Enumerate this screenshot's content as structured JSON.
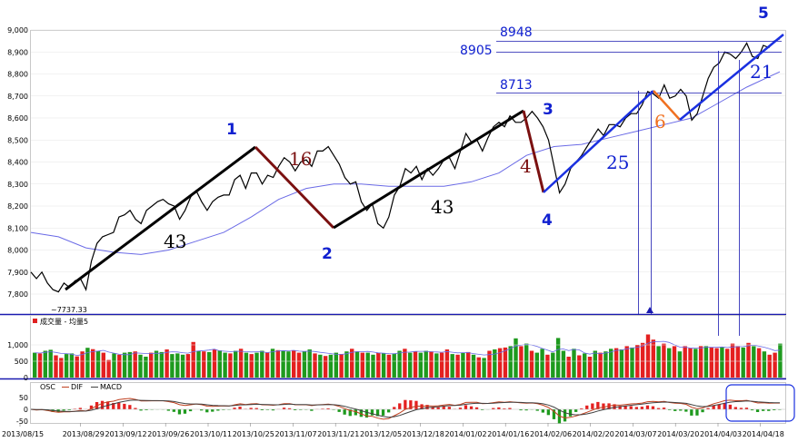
{
  "chart_data": {
    "type": "line",
    "main_panel": {
      "y_ticks": [
        "9,000",
        "8,900",
        "8,800",
        "8,700",
        "8,600",
        "8,500",
        "8,400",
        "8,300",
        "8,200",
        "8,100",
        "8,000",
        "7,900",
        "7,800"
      ],
      "ylim": [
        7737,
        9000
      ],
      "min_label": "7737.33",
      "price": [
        [
          0,
          7900
        ],
        [
          2,
          7870
        ],
        [
          4,
          7900
        ],
        [
          6,
          7850
        ],
        [
          8,
          7820
        ],
        [
          10,
          7810
        ],
        [
          12,
          7850
        ],
        [
          14,
          7830
        ],
        [
          16,
          7860
        ],
        [
          18,
          7870
        ],
        [
          20,
          7820
        ],
        [
          22,
          7950
        ],
        [
          24,
          8030
        ],
        [
          26,
          8060
        ],
        [
          28,
          8070
        ],
        [
          30,
          8080
        ],
        [
          32,
          8150
        ],
        [
          34,
          8160
        ],
        [
          36,
          8180
        ],
        [
          38,
          8140
        ],
        [
          40,
          8120
        ],
        [
          42,
          8180
        ],
        [
          44,
          8200
        ],
        [
          46,
          8220
        ],
        [
          48,
          8230
        ],
        [
          50,
          8210
        ],
        [
          52,
          8200
        ],
        [
          54,
          8140
        ],
        [
          56,
          8180
        ],
        [
          58,
          8240
        ],
        [
          60,
          8270
        ],
        [
          62,
          8220
        ],
        [
          64,
          8180
        ],
        [
          66,
          8220
        ],
        [
          68,
          8240
        ],
        [
          70,
          8250
        ],
        [
          72,
          8250
        ],
        [
          74,
          8320
        ],
        [
          76,
          8340
        ],
        [
          78,
          8280
        ],
        [
          80,
          8350
        ],
        [
          82,
          8350
        ],
        [
          84,
          8300
        ],
        [
          86,
          8340
        ],
        [
          88,
          8330
        ],
        [
          90,
          8380
        ],
        [
          92,
          8420
        ],
        [
          94,
          8400
        ],
        [
          96,
          8360
        ],
        [
          98,
          8400
        ],
        [
          100,
          8410
        ],
        [
          102,
          8380
        ],
        [
          104,
          8450
        ],
        [
          106,
          8450
        ],
        [
          108,
          8470
        ],
        [
          110,
          8430
        ],
        [
          112,
          8390
        ],
        [
          114,
          8330
        ],
        [
          116,
          8300
        ],
        [
          118,
          8310
        ],
        [
          120,
          8220
        ],
        [
          122,
          8180
        ],
        [
          124,
          8210
        ],
        [
          126,
          8120
        ],
        [
          128,
          8100
        ],
        [
          130,
          8150
        ],
        [
          132,
          8250
        ],
        [
          134,
          8290
        ],
        [
          136,
          8370
        ],
        [
          138,
          8350
        ],
        [
          140,
          8380
        ],
        [
          142,
          8320
        ],
        [
          144,
          8370
        ],
        [
          146,
          8340
        ],
        [
          148,
          8370
        ],
        [
          150,
          8410
        ],
        [
          152,
          8420
        ],
        [
          154,
          8370
        ],
        [
          156,
          8450
        ],
        [
          158,
          8530
        ],
        [
          160,
          8490
        ],
        [
          162,
          8500
        ],
        [
          164,
          8450
        ],
        [
          166,
          8510
        ],
        [
          168,
          8560
        ],
        [
          170,
          8580
        ],
        [
          172,
          8560
        ],
        [
          174,
          8610
        ],
        [
          176,
          8580
        ],
        [
          178,
          8580
        ],
        [
          180,
          8600
        ],
        [
          182,
          8630
        ],
        [
          184,
          8600
        ],
        [
          186,
          8560
        ],
        [
          188,
          8500
        ],
        [
          190,
          8380
        ],
        [
          192,
          8260
        ],
        [
          194,
          8300
        ],
        [
          196,
          8370
        ],
        [
          198,
          8400
        ],
        [
          200,
          8430
        ],
        [
          202,
          8470
        ],
        [
          204,
          8510
        ],
        [
          206,
          8550
        ],
        [
          208,
          8520
        ],
        [
          210,
          8570
        ],
        [
          212,
          8570
        ],
        [
          214,
          8560
        ],
        [
          216,
          8600
        ],
        [
          218,
          8620
        ],
        [
          220,
          8620
        ],
        [
          222,
          8660
        ],
        [
          224,
          8720
        ],
        [
          226,
          8710
        ],
        [
          228,
          8690
        ],
        [
          230,
          8750
        ],
        [
          232,
          8690
        ],
        [
          234,
          8700
        ],
        [
          236,
          8730
        ],
        [
          238,
          8700
        ],
        [
          240,
          8590
        ],
        [
          242,
          8620
        ],
        [
          244,
          8700
        ],
        [
          246,
          8780
        ],
        [
          248,
          8830
        ],
        [
          250,
          8850
        ],
        [
          252,
          8900
        ],
        [
          254,
          8890
        ],
        [
          256,
          8870
        ],
        [
          258,
          8900
        ],
        [
          260,
          8940
        ],
        [
          262,
          8880
        ],
        [
          264,
          8870
        ],
        [
          266,
          8930
        ],
        [
          268,
          8920
        ],
        [
          270,
          8950
        ],
        [
          272,
          8960
        ]
      ],
      "ma": [
        [
          0,
          8080
        ],
        [
          10,
          8060
        ],
        [
          20,
          8010
        ],
        [
          30,
          7990
        ],
        [
          40,
          7980
        ],
        [
          50,
          8000
        ],
        [
          60,
          8040
        ],
        [
          70,
          8080
        ],
        [
          80,
          8150
        ],
        [
          90,
          8230
        ],
        [
          100,
          8280
        ],
        [
          110,
          8300
        ],
        [
          120,
          8300
        ],
        [
          130,
          8290
        ],
        [
          140,
          8290
        ],
        [
          150,
          8290
        ],
        [
          160,
          8310
        ],
        [
          170,
          8350
        ],
        [
          180,
          8430
        ],
        [
          190,
          8470
        ],
        [
          200,
          8480
        ],
        [
          210,
          8510
        ],
        [
          220,
          8540
        ],
        [
          230,
          8570
        ],
        [
          240,
          8600
        ],
        [
          250,
          8670
        ],
        [
          260,
          8740
        ],
        [
          272,
          8810
        ]
      ],
      "levels": [
        {
          "label": "8948",
          "value": 8948
        },
        {
          "label": "8905",
          "value": 8905
        },
        {
          "label": "8713",
          "value": 8713
        }
      ],
      "wave_labels": [
        "1",
        "2",
        "3",
        "4",
        "5"
      ],
      "count_labels": [
        "43",
        "16",
        "43",
        "4",
        "25",
        "6",
        "21"
      ]
    },
    "volume_panel": {
      "legend": "成交量 - 均量5",
      "y_ticks": [
        "1,000",
        "500",
        "0"
      ],
      "ylim": [
        0,
        1500
      ],
      "values": [
        [
          760,
          "g"
        ],
        [
          740,
          "r"
        ],
        [
          820,
          "g"
        ],
        [
          850,
          "g"
        ],
        [
          680,
          "r"
        ],
        [
          600,
          "r"
        ],
        [
          720,
          "g"
        ],
        [
          740,
          "g"
        ],
        [
          650,
          "r"
        ],
        [
          800,
          "r"
        ],
        [
          910,
          "g"
        ],
        [
          870,
          "r"
        ],
        [
          820,
          "g"
        ],
        [
          760,
          "r"
        ],
        [
          540,
          "r"
        ],
        [
          740,
          "g"
        ],
        [
          700,
          "r"
        ],
        [
          760,
          "g"
        ],
        [
          780,
          "g"
        ],
        [
          800,
          "r"
        ],
        [
          700,
          "g"
        ],
        [
          640,
          "g"
        ],
        [
          760,
          "r"
        ],
        [
          820,
          "g"
        ],
        [
          780,
          "g"
        ],
        [
          860,
          "r"
        ],
        [
          720,
          "g"
        ],
        [
          740,
          "g"
        ],
        [
          700,
          "g"
        ],
        [
          720,
          "r"
        ],
        [
          1090,
          "r"
        ],
        [
          820,
          "g"
        ],
        [
          800,
          "r"
        ],
        [
          780,
          "g"
        ],
        [
          860,
          "r"
        ],
        [
          830,
          "g"
        ],
        [
          760,
          "g"
        ],
        [
          740,
          "r"
        ],
        [
          820,
          "g"
        ],
        [
          880,
          "r"
        ],
        [
          760,
          "g"
        ],
        [
          720,
          "r"
        ],
        [
          760,
          "g"
        ],
        [
          820,
          "g"
        ],
        [
          760,
          "r"
        ],
        [
          880,
          "g"
        ],
        [
          840,
          "r"
        ],
        [
          820,
          "g"
        ],
        [
          800,
          "g"
        ],
        [
          820,
          "r"
        ],
        [
          760,
          "r"
        ],
        [
          800,
          "g"
        ],
        [
          860,
          "g"
        ],
        [
          740,
          "r"
        ],
        [
          700,
          "g"
        ],
        [
          660,
          "r"
        ],
        [
          700,
          "g"
        ],
        [
          760,
          "g"
        ],
        [
          720,
          "r"
        ],
        [
          800,
          "g"
        ],
        [
          880,
          "r"
        ],
        [
          800,
          "g"
        ],
        [
          760,
          "r"
        ],
        [
          760,
          "g"
        ],
        [
          700,
          "g"
        ],
        [
          760,
          "r"
        ],
        [
          740,
          "g"
        ],
        [
          700,
          "r"
        ],
        [
          740,
          "g"
        ],
        [
          820,
          "g"
        ],
        [
          880,
          "r"
        ],
        [
          760,
          "g"
        ],
        [
          800,
          "r"
        ],
        [
          760,
          "g"
        ],
        [
          820,
          "g"
        ],
        [
          800,
          "r"
        ],
        [
          740,
          "g"
        ],
        [
          760,
          "r"
        ],
        [
          860,
          "r"
        ],
        [
          720,
          "g"
        ],
        [
          700,
          "r"
        ],
        [
          760,
          "g"
        ],
        [
          780,
          "r"
        ],
        [
          700,
          "g"
        ],
        [
          620,
          "r"
        ],
        [
          600,
          "g"
        ],
        [
          820,
          "r"
        ],
        [
          860,
          "g"
        ],
        [
          900,
          "r"
        ],
        [
          920,
          "r"
        ],
        [
          960,
          "g"
        ],
        [
          1200,
          "g"
        ],
        [
          960,
          "r"
        ],
        [
          1040,
          "g"
        ],
        [
          820,
          "r"
        ],
        [
          760,
          "g"
        ],
        [
          880,
          "g"
        ],
        [
          700,
          "r"
        ],
        [
          760,
          "g"
        ],
        [
          1210,
          "g"
        ],
        [
          820,
          "g"
        ],
        [
          640,
          "r"
        ],
        [
          880,
          "g"
        ],
        [
          680,
          "r"
        ],
        [
          740,
          "g"
        ],
        [
          640,
          "r"
        ],
        [
          820,
          "g"
        ],
        [
          760,
          "r"
        ],
        [
          800,
          "g"
        ],
        [
          880,
          "g"
        ],
        [
          900,
          "r"
        ],
        [
          860,
          "g"
        ],
        [
          960,
          "r"
        ],
        [
          920,
          "g"
        ],
        [
          1000,
          "r"
        ],
        [
          1060,
          "r"
        ],
        [
          1320,
          "r"
        ],
        [
          1160,
          "r"
        ],
        [
          960,
          "g"
        ],
        [
          1040,
          "r"
        ],
        [
          900,
          "g"
        ],
        [
          960,
          "r"
        ],
        [
          800,
          "g"
        ],
        [
          960,
          "r"
        ],
        [
          900,
          "r"
        ],
        [
          880,
          "g"
        ],
        [
          960,
          "r"
        ],
        [
          960,
          "g"
        ],
        [
          920,
          "r"
        ],
        [
          900,
          "r"
        ],
        [
          940,
          "g"
        ],
        [
          880,
          "r"
        ],
        [
          1040,
          "r"
        ],
        [
          960,
          "r"
        ],
        [
          920,
          "g"
        ],
        [
          1060,
          "r"
        ],
        [
          960,
          "g"
        ],
        [
          900,
          "r"
        ],
        [
          800,
          "g"
        ],
        [
          700,
          "r"
        ],
        [
          760,
          "r"
        ],
        [
          1040,
          "g"
        ]
      ]
    },
    "macd_panel": {
      "legend": [
        "OSC",
        "DIF",
        "MACD"
      ],
      "y_ticks": [
        "50",
        "0",
        "-50"
      ],
      "ylim": [
        -60,
        60
      ]
    },
    "x_labels": [
      "2013/08/15",
      "2013/08/29",
      "2013/09/12",
      "2013/09/26",
      "2013/10/11",
      "2013/10/25",
      "2013/11/07",
      "2013/11/21",
      "2013/12/05",
      "2013/12/18",
      "2014/01/02",
      "2014/01/16",
      "2014/02/06",
      "2014/02/20",
      "2014/03/07",
      "2014/03/20",
      "2014/04/03",
      "2014/04/18"
    ]
  }
}
